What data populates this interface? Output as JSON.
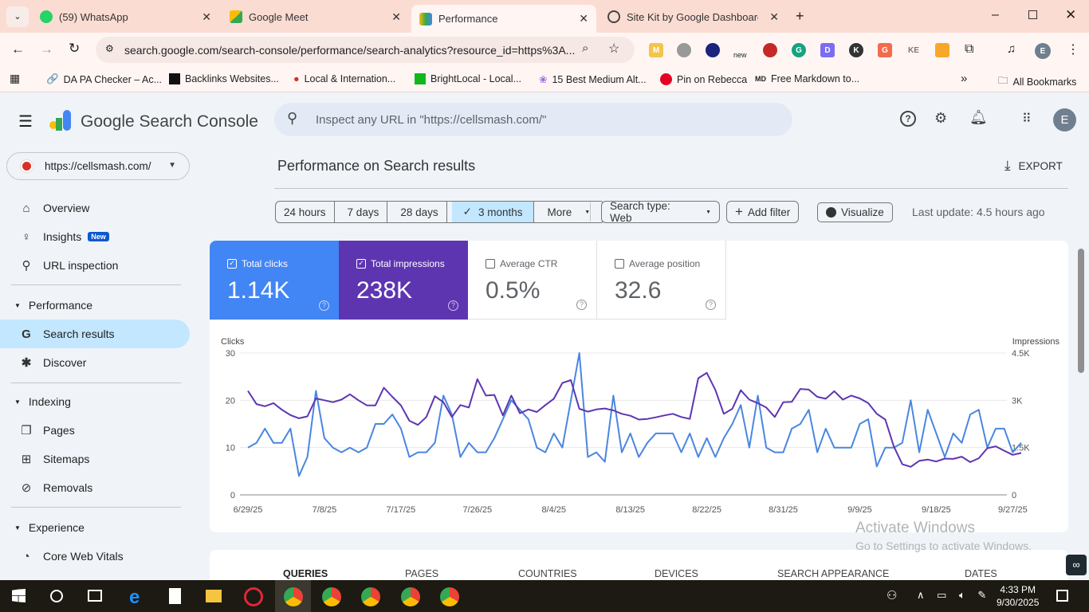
{
  "browser": {
    "tabs": [
      {
        "label": "(59) WhatsApp",
        "badge": "59",
        "icon": "whatsapp-icon"
      },
      {
        "label": "Google Meet",
        "icon": "google-meet-icon"
      },
      {
        "label": "Performance",
        "icon": "search-console-icon",
        "active": true
      },
      {
        "label": "Site Kit by Google Dashboard ‹",
        "icon": "site-kit-icon"
      }
    ],
    "url": "search.google.com/search-console/performance/search-analytics?resource_id=https%3A...",
    "extensions": [
      "M",
      "G",
      "D",
      "K",
      "G",
      "KE"
    ],
    "ext_new_label": "new",
    "profile_initial": "E",
    "bookmarks": [
      "DA PA Checker – Ac...",
      "Backlinks Websites...",
      "Local & Internation...",
      "BrightLocal - Local...",
      "15 Best Medium Alt...",
      "Pin on Rebecca",
      "Free Markdown to..."
    ],
    "all_bookmarks": "All Bookmarks"
  },
  "app": {
    "title": "Google Search Console",
    "search_placeholder": "Inspect any URL in \"https://cellsmash.com/\"",
    "profile_initial": "E",
    "property": "https://cellsmash.com/"
  },
  "sidebar": {
    "items": [
      {
        "label": "Overview",
        "icon": "home-icon"
      },
      {
        "label": "Insights",
        "badge": "New",
        "icon": "lightbulb-icon"
      },
      {
        "label": "URL inspection",
        "icon": "search-icon"
      }
    ],
    "sections": [
      {
        "label": "Performance",
        "items": [
          {
            "label": "Search results",
            "active": true
          },
          {
            "label": "Discover"
          }
        ]
      },
      {
        "label": "Indexing",
        "items": [
          {
            "label": "Pages"
          },
          {
            "label": "Sitemaps"
          },
          {
            "label": "Removals"
          }
        ]
      },
      {
        "label": "Experience",
        "items": [
          {
            "label": "Core Web Vitals"
          }
        ]
      }
    ]
  },
  "main": {
    "title": "Performance on Search results",
    "export": "EXPORT",
    "date_ranges": [
      "24 hours",
      "7 days",
      "28 days",
      "3 months",
      "More"
    ],
    "selected_range": "3 months",
    "search_type": "Search type: Web",
    "add_filter": "Add filter",
    "visualize": "Visualize",
    "last_update": "Last update: 4.5 hours ago",
    "metrics": [
      {
        "label": "Total clicks",
        "value": "1.14K",
        "checked": true,
        "color": "#4285f4"
      },
      {
        "label": "Total impressions",
        "value": "238K",
        "checked": true,
        "color": "#5e35b1"
      },
      {
        "label": "Average CTR",
        "value": "0.5%",
        "checked": false
      },
      {
        "label": "Average position",
        "value": "32.6",
        "checked": false
      }
    ],
    "report_tabs": [
      "QUERIES",
      "PAGES",
      "COUNTRIES",
      "DEVICES",
      "SEARCH APPEARANCE",
      "DATES"
    ]
  },
  "chart_data": {
    "type": "line",
    "xlabel": "",
    "ylabel": "Clicks",
    "y2label": "Impressions",
    "ylim": [
      0,
      30
    ],
    "y2lim": [
      0,
      4500
    ],
    "yticks": [
      "0",
      "10",
      "20",
      "30"
    ],
    "y2ticks": [
      "0",
      "1.5K",
      "3K",
      "4.5K"
    ],
    "xticks": [
      "6/29/25",
      "7/8/25",
      "7/17/25",
      "7/26/25",
      "8/4/25",
      "8/13/25",
      "8/22/25",
      "8/31/25",
      "9/9/25",
      "9/18/25",
      "9/27/25"
    ],
    "start_date": "2025-06-29",
    "series": [
      {
        "name": "Clicks",
        "axis": "left",
        "color": "#4a86e0",
        "values": [
          10,
          11,
          14,
          11,
          11,
          14,
          4,
          8,
          22,
          12,
          10,
          9,
          10,
          9,
          10,
          15,
          15,
          17,
          14,
          8,
          9,
          9,
          11,
          21,
          17,
          8,
          11,
          9,
          9,
          12,
          16,
          20,
          18,
          16,
          10,
          9,
          13,
          10,
          20,
          30,
          8,
          9,
          7,
          21,
          9,
          13,
          8,
          11,
          13,
          13,
          13,
          9,
          13,
          8,
          12,
          8,
          12,
          15,
          19,
          10,
          21,
          10,
          9,
          9,
          14,
          15,
          18,
          9,
          14,
          10,
          10,
          10,
          15,
          16,
          6,
          10,
          10,
          11,
          20,
          9,
          18,
          13,
          8,
          13,
          11,
          17,
          18,
          10,
          14,
          14,
          9,
          11
        ]
      },
      {
        "name": "Impressions",
        "axis": "right",
        "color": "#5e35b1",
        "values": [
          3300,
          2880,
          2810,
          2910,
          2700,
          2530,
          2430,
          2490,
          3060,
          3000,
          2940,
          3020,
          3190,
          3000,
          2840,
          2840,
          3400,
          3110,
          2840,
          2350,
          2220,
          2470,
          3130,
          2940,
          2470,
          2850,
          2770,
          3670,
          3150,
          3170,
          2520,
          3150,
          2590,
          2710,
          2630,
          2850,
          3050,
          3550,
          3640,
          2730,
          2640,
          2710,
          2740,
          2680,
          2570,
          2510,
          2390,
          2410,
          2460,
          2520,
          2570,
          2470,
          2410,
          3700,
          3870,
          3330,
          2570,
          2730,
          3320,
          3020,
          2910,
          2770,
          2470,
          2940,
          2950,
          3360,
          3340,
          3110,
          3050,
          3290,
          3020,
          3150,
          3060,
          2910,
          2570,
          2390,
          1540,
          970,
          890,
          1080,
          1120,
          1060,
          1150,
          1140,
          1210,
          1040,
          1160,
          1480,
          1540,
          1400,
          1270,
          1330
        ]
      }
    ]
  },
  "watermark": {
    "line1": "Activate Windows",
    "line2": "Go to Settings to activate Windows."
  },
  "taskbar": {
    "time": "4:33 PM",
    "date": "9/30/2025"
  }
}
